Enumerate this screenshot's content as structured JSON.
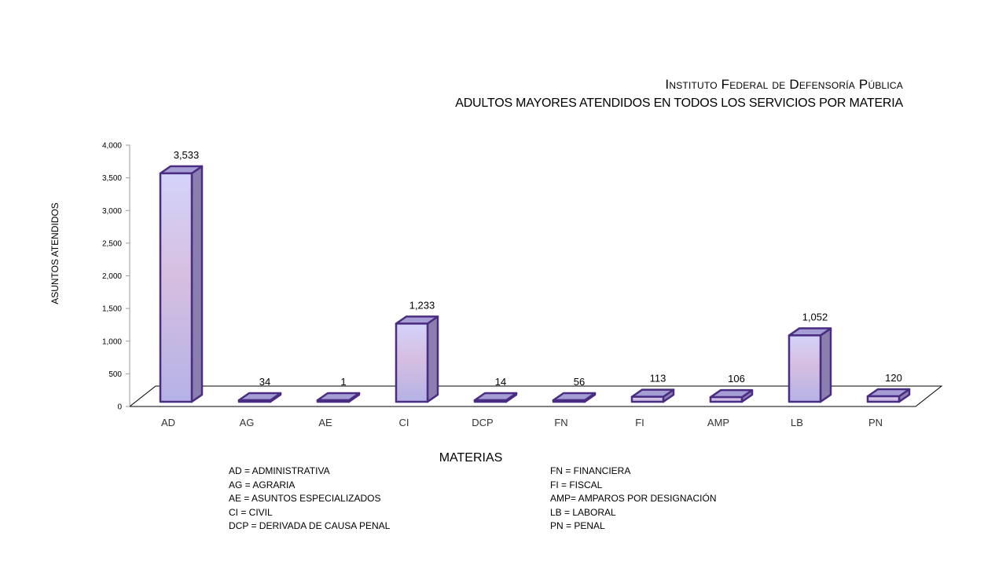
{
  "chart_data": {
    "type": "bar",
    "title": "Instituto Federal de Defensoría Pública",
    "subtitle": "ADULTOS MAYORES ATENDIDOS EN TODOS LOS SERVICIOS POR MATERIA",
    "xlabel": "MATERIAS",
    "ylabel": "ASUNTOS ATENDIDOS",
    "categories": [
      "AD",
      "AG",
      "AE",
      "CI",
      "DCP",
      "FN",
      "FI",
      "AMP",
      "LB",
      "PN"
    ],
    "values": [
      3533,
      34,
      1,
      1233,
      14,
      56,
      113,
      106,
      1052,
      120
    ],
    "data_labels": [
      "3,533",
      "34",
      "1",
      "1,233",
      "14",
      "56",
      "113",
      "106",
      "1,052",
      "120"
    ],
    "ylim": [
      0,
      4000
    ],
    "yticks": [
      0,
      500,
      1000,
      1500,
      2000,
      2500,
      3000,
      3500,
      4000
    ],
    "ytick_labels": [
      "0",
      "500",
      "1,000",
      "1,500",
      "2,000",
      "2,500",
      "3,000",
      "3,500",
      "4,000"
    ],
    "grid": false,
    "style": "3d-column",
    "colors": {
      "bar_top_gradient": "#d3d3fa",
      "bar_mid_gradient": "#d6bfe0",
      "bar_bottom_gradient": "#b4b2e6",
      "bar_side": "#8a7fae",
      "bar_cap": "#a49ed4",
      "bar_outline": "#4b2c83"
    }
  },
  "legend": {
    "left": [
      "AD = ADMINISTRATIVA",
      "AG = AGRARIA",
      "AE = ASUNTOS  ESPECIALIZADOS",
      "CI = CIVIL",
      "DCP = DERIVADA DE CAUSA PENAL"
    ],
    "right": [
      "FN = FINANCIERA",
      "FI = FISCAL",
      "AMP= AMPAROS POR DESIGNACIÓN",
      "LB = LABORAL",
      "PN = PENAL"
    ]
  }
}
